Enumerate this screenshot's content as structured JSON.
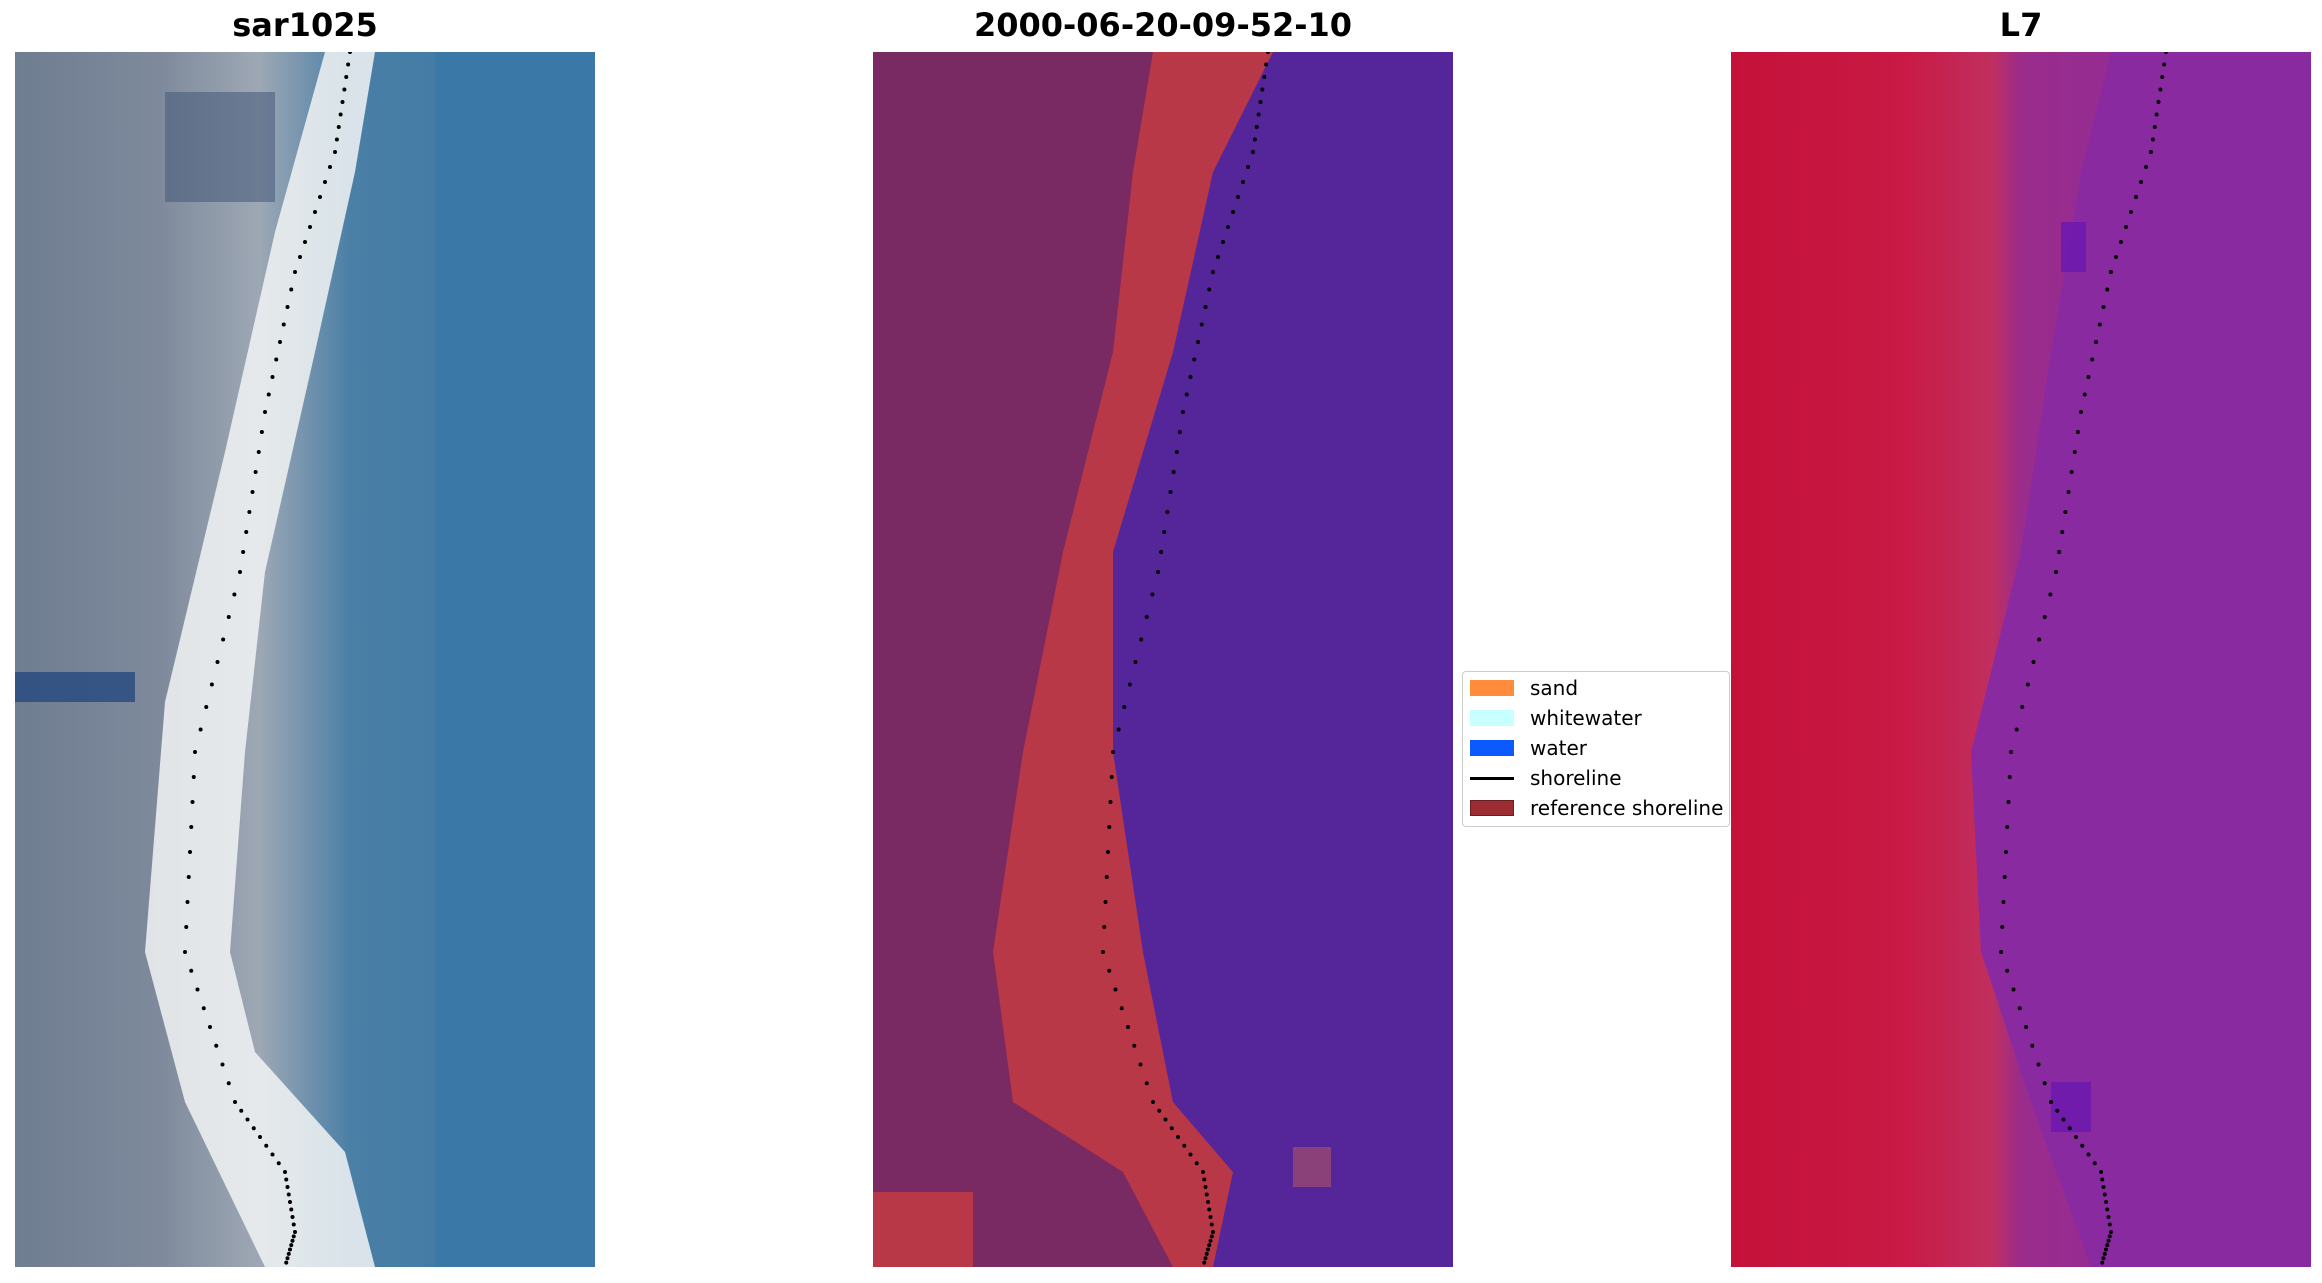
{
  "panels": [
    {
      "title": "sar1025"
    },
    {
      "title": "2000-06-20-09-52-10"
    },
    {
      "title": "L7"
    }
  ],
  "legend": {
    "items": [
      {
        "label": "sand",
        "color": "#ff8c3c"
      },
      {
        "label": "whitewater",
        "color": "#c8ffff"
      },
      {
        "label": "water",
        "color": "#0a5aff"
      },
      {
        "label": "shoreline",
        "color": "#000000"
      },
      {
        "label": "reference shoreline",
        "color": "#9b2d32"
      }
    ]
  },
  "colors": {
    "rgb_land": "#7b8798",
    "rgb_water": "#3a79a8",
    "rgb_surf": "#eef2f4",
    "class_land": "#7a2a62",
    "class_sand": "#b83848",
    "class_water": "#55259a",
    "nir_land": "#c8193f",
    "nir_water": "#8a2aa0"
  }
}
